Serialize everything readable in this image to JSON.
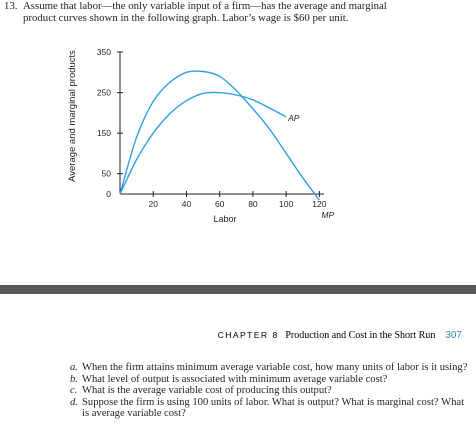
{
  "question": {
    "number": "13.",
    "line1": "Assume that labor—the only variable input of a firm—has the average and marginal",
    "line2": "product curves shown in the following graph. Labor’s wage is $60 per unit."
  },
  "chart_data": {
    "type": "line",
    "ylabel": "Average and marginal products",
    "xlabel": "Labor",
    "x_ticks": [
      "20",
      "40",
      "60",
      "80",
      "100",
      "120"
    ],
    "y_ticks": [
      "0",
      "50",
      "150",
      "250",
      "350"
    ],
    "xlim": [
      0,
      130
    ],
    "ylim": [
      0,
      350
    ],
    "color": "#2f9fe3",
    "series": [
      {
        "name": "AP",
        "x": [
          0,
          10,
          20,
          30,
          40,
          50,
          60,
          70,
          80,
          90,
          100
        ],
        "y": [
          0,
          85,
          150,
          198,
          230,
          248,
          250,
          244,
          232,
          212,
          190
        ]
      },
      {
        "name": "MP",
        "x": [
          0,
          10,
          20,
          30,
          40,
          50,
          60,
          70,
          80,
          90,
          100,
          110,
          120
        ],
        "y": [
          0,
          140,
          228,
          275,
          300,
          302,
          290,
          255,
          210,
          160,
          100,
          40,
          -15
        ]
      }
    ]
  },
  "page_header": {
    "chapter": "CHAPTER",
    "chapter_number": "8",
    "title": "Production and Cost in the Short Run",
    "page": "307"
  },
  "parts": [
    {
      "label": "a.",
      "text": "When the firm attains minimum average variable cost, how many units of labor is it using?"
    },
    {
      "label": "b.",
      "text": "What level of output is associated with minimum average variable cost?"
    },
    {
      "label": "c.",
      "text": "What is the average variable cost of producing this output?"
    },
    {
      "label": "d.",
      "text": "Suppose the firm is using 100 units of labor. What is output? What is marginal cost? What is average variable cost?"
    }
  ]
}
